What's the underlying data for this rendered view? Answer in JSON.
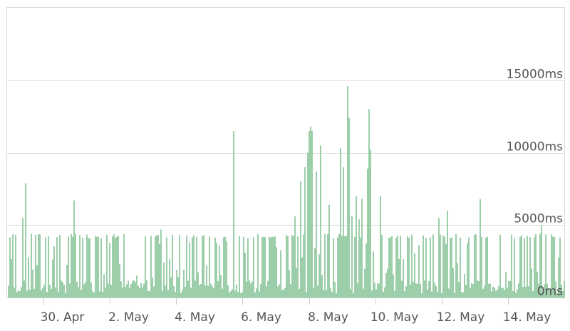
{
  "chart_data": {
    "type": "bar",
    "title": "",
    "xlabel": "",
    "ylabel": "",
    "ylim": [
      0,
      20000
    ],
    "y_ticks": [
      {
        "value": 0,
        "label": "0ms"
      },
      {
        "value": 5000,
        "label": "5000ms"
      },
      {
        "value": 10000,
        "label": "10000ms"
      },
      {
        "value": 15000,
        "label": "15000ms"
      }
    ],
    "x_ticks": [
      "30. Apr",
      "2. May",
      "4. May",
      "6. May",
      "8. May",
      "10. May",
      "12. May",
      "14. May"
    ],
    "x_range_days": [
      28.9,
      45.7
    ],
    "grid": true,
    "legend": "none",
    "colors": {
      "bar": "#9ccfa9",
      "grid": "#dddddd",
      "axis": "#cccccc",
      "text": "#555555"
    },
    "baseline_ms": 4400,
    "spikes": [
      {
        "day": 29.45,
        "value": 7900
      },
      {
        "day": 29.35,
        "value": 5500
      },
      {
        "day": 30.9,
        "value": 6700
      },
      {
        "day": 33.55,
        "value": 4600
      },
      {
        "day": 33.55,
        "value": 4700
      },
      {
        "day": 35.7,
        "value": 11500
      },
      {
        "day": 37.3,
        "value": 4300
      },
      {
        "day": 37.55,
        "value": 5600
      },
      {
        "day": 37.75,
        "value": 8000
      },
      {
        "day": 37.85,
        "value": 9000
      },
      {
        "day": 37.95,
        "value": 10000
      },
      {
        "day": 38.0,
        "value": 11500
      },
      {
        "day": 38.05,
        "value": 11800
      },
      {
        "day": 38.1,
        "value": 11500
      },
      {
        "day": 38.2,
        "value": 8700
      },
      {
        "day": 38.35,
        "value": 10500
      },
      {
        "day": 38.6,
        "value": 6400
      },
      {
        "day": 38.95,
        "value": 10300
      },
      {
        "day": 39.05,
        "value": 9000
      },
      {
        "day": 39.15,
        "value": 14600
      },
      {
        "day": 39.2,
        "value": 12400
      },
      {
        "day": 39.3,
        "value": 5600
      },
      {
        "day": 39.4,
        "value": 7000
      },
      {
        "day": 39.5,
        "value": 5400
      },
      {
        "day": 39.6,
        "value": 6800
      },
      {
        "day": 39.75,
        "value": 8900
      },
      {
        "day": 39.8,
        "value": 13000
      },
      {
        "day": 39.85,
        "value": 10200
      },
      {
        "day": 40.15,
        "value": 7000
      },
      {
        "day": 41.9,
        "value": 5500
      },
      {
        "day": 42.15,
        "value": 6000
      },
      {
        "day": 43.15,
        "value": 6800
      },
      {
        "day": 45.0,
        "value": 5000
      }
    ]
  }
}
